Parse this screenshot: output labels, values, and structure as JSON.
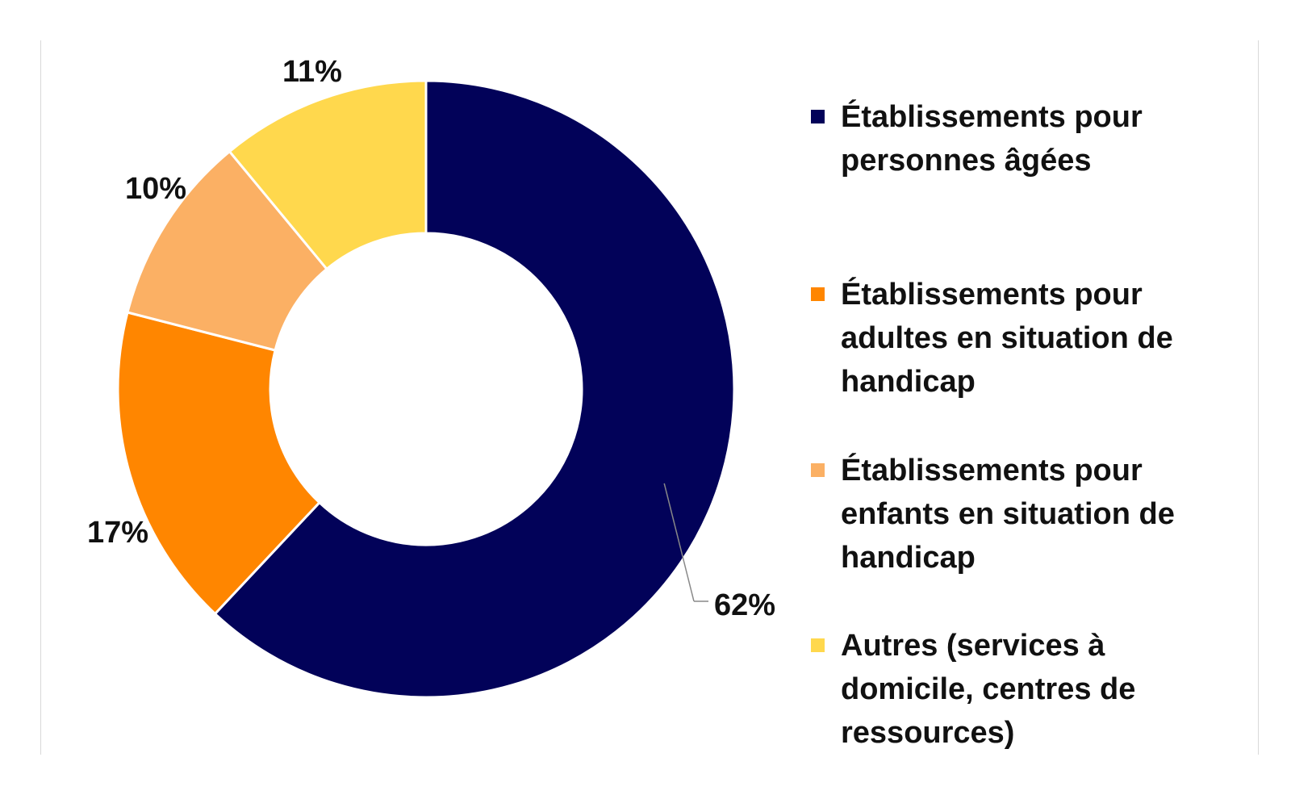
{
  "chart_data": {
    "type": "pie",
    "variant": "donut",
    "legend_position": "right",
    "slices": [
      {
        "label": "Établissements pour personnes âgées",
        "value": 62,
        "value_label": "62%",
        "color": "#020259"
      },
      {
        "label": "Établissements pour adultes en situation de handicap",
        "value": 17,
        "value_label": "17%",
        "color": "#ff8600"
      },
      {
        "label": "Établissements pour enfants en situation de handicap",
        "value": 10,
        "value_label": "10%",
        "color": "#fbb064"
      },
      {
        "label": "Autres (services à domicile, centres de ressources)",
        "value": 11,
        "value_label": "11%",
        "color": "#ffd84d"
      }
    ]
  }
}
